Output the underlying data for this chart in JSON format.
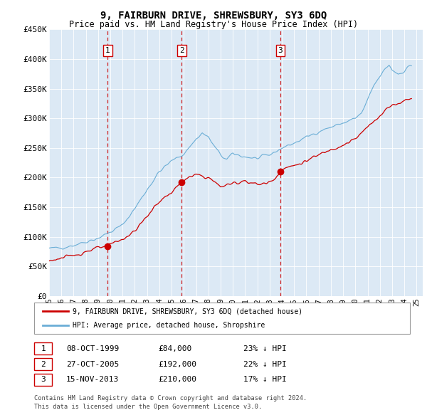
{
  "title": "9, FAIRBURN DRIVE, SHREWSBURY, SY3 6DQ",
  "subtitle": "Price paid vs. HM Land Registry's House Price Index (HPI)",
  "hpi_label": "HPI: Average price, detached house, Shropshire",
  "price_label": "9, FAIRBURN DRIVE, SHREWSBURY, SY3 6DQ (detached house)",
  "footer1": "Contains HM Land Registry data © Crown copyright and database right 2024.",
  "footer2": "This data is licensed under the Open Government Licence v3.0.",
  "ylim": [
    0,
    450000
  ],
  "yticks": [
    0,
    50000,
    100000,
    150000,
    200000,
    250000,
    300000,
    350000,
    400000,
    450000
  ],
  "ytick_labels": [
    "£0",
    "£50K",
    "£100K",
    "£150K",
    "£200K",
    "£250K",
    "£300K",
    "£350K",
    "£400K",
    "£450K"
  ],
  "xlim_start": 1995.0,
  "xlim_end": 2025.5,
  "bg_color": "#DCE9F5",
  "hpi_color": "#6BAED6",
  "price_color": "#CC0000",
  "vline_color": "#CC0000",
  "sales": [
    {
      "year": 1999.79,
      "price": 84000,
      "label": "1",
      "date": "08-OCT-1999",
      "pct": "23%"
    },
    {
      "year": 2005.83,
      "price": 192000,
      "label": "2",
      "date": "27-OCT-2005",
      "pct": "22%"
    },
    {
      "year": 2013.88,
      "price": 210000,
      "label": "3",
      "date": "15-NOV-2013",
      "pct": "17%"
    }
  ],
  "table_rows": [
    [
      "1",
      "08-OCT-1999",
      "£84,000",
      "23% ↓ HPI"
    ],
    [
      "2",
      "27-OCT-2005",
      "£192,000",
      "22% ↓ HPI"
    ],
    [
      "3",
      "15-NOV-2013",
      "£210,000",
      "17% ↓ HPI"
    ]
  ]
}
